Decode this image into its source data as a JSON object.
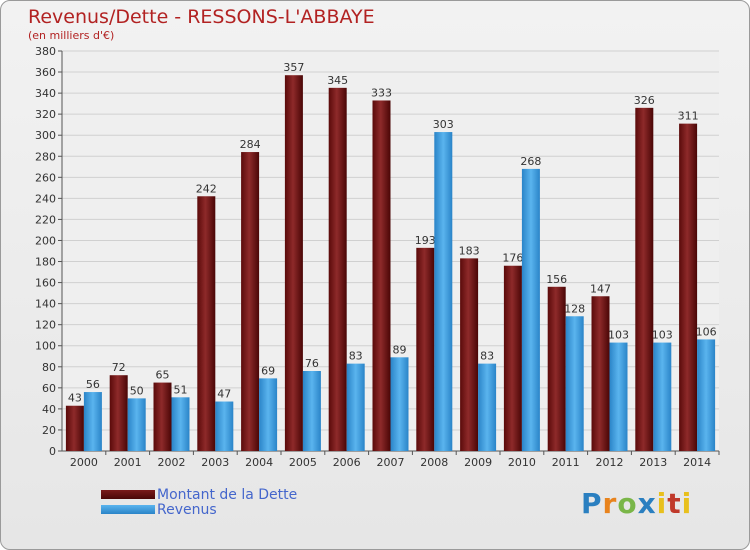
{
  "chart_data": {
    "type": "bar",
    "title": "Revenus/Dette - RESSONS-L'ABBAYE",
    "subtitle": "(en milliers d'€)",
    "categories": [
      "2000",
      "2001",
      "2002",
      "2003",
      "2004",
      "2005",
      "2006",
      "2007",
      "2008",
      "2009",
      "2010",
      "2011",
      "2012",
      "2013",
      "2014"
    ],
    "series": [
      {
        "name": "Montant de la Dette",
        "color": "#7a1a1a",
        "values": [
          43,
          72,
          65,
          242,
          284,
          357,
          345,
          333,
          193,
          183,
          176,
          156,
          147,
          326,
          311
        ]
      },
      {
        "name": "Revenus",
        "color": "#3a9ee0",
        "values": [
          56,
          50,
          51,
          47,
          69,
          76,
          83,
          89,
          303,
          83,
          268,
          128,
          103,
          103,
          106
        ]
      }
    ],
    "ylim": [
      0,
      380
    ],
    "ytick_step": 20,
    "grid": true,
    "legend_position": "bottom-left"
  },
  "legend": {
    "debt_label": "Montant de la Dette",
    "revenue_label": "Revenus"
  },
  "logo": {
    "text": "Proxiti"
  }
}
